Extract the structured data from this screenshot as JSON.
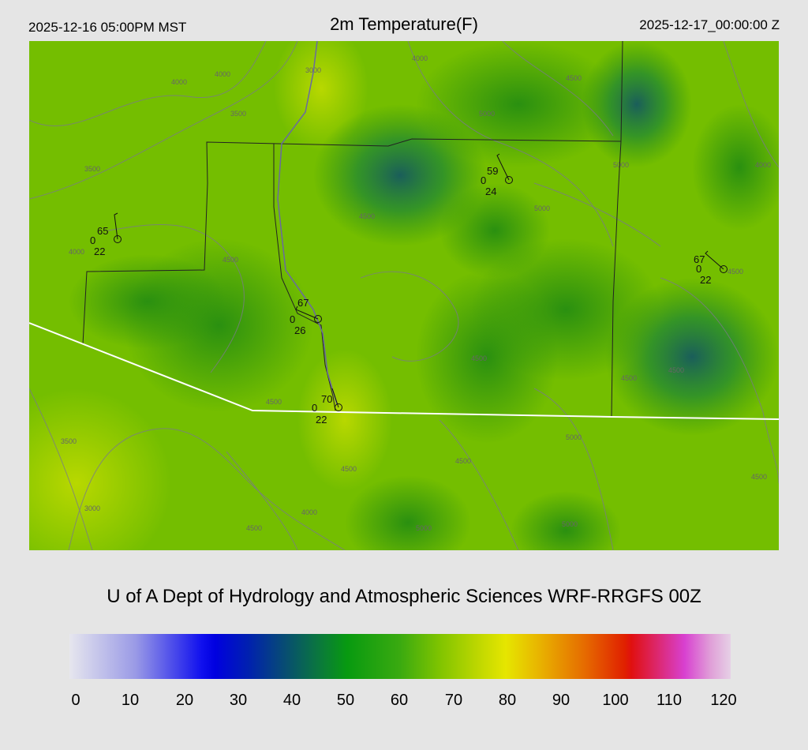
{
  "header": {
    "local_time": "2025-12-16 05:00PM MST",
    "title": "2m Temperature(F)",
    "utc_time": "2025-12-17_00:00:00 Z"
  },
  "credit": "U of A Dept of Hydrology and Atmospheric Sciences WRF-RRGFS 00Z",
  "colorbar": {
    "ticks": [
      "0",
      "10",
      "20",
      "30",
      "40",
      "50",
      "60",
      "70",
      "80",
      "90",
      "100",
      "110",
      "120"
    ],
    "colors": {
      "low": "#e6e6ee",
      "blue": "#0000e0",
      "green": "#089a10",
      "yellow": "#e6e600",
      "red": "#e01010",
      "high": "#e6d0e6"
    }
  },
  "map": {
    "field_colors": {
      "base": "#7cc400",
      "dark_green": "#3a9e10",
      "deep": "#1e6e50",
      "yellow": "#b8d800"
    },
    "contour_labels": [
      "4000",
      "4000",
      "3000",
      "3500",
      "3500",
      "4500",
      "4000",
      "4500",
      "5000",
      "5000",
      "5000",
      "4000",
      "4500",
      "4500",
      "4500",
      "4500",
      "3500",
      "3000",
      "4000",
      "4500",
      "4500",
      "4500",
      "5000",
      "5000",
      "5000",
      "4500",
      "4000",
      "4500",
      "4500"
    ],
    "stations": [
      {
        "temp": "65",
        "wind": "0",
        "dew": "22"
      },
      {
        "temp": "59",
        "wind": "0",
        "dew": "24"
      },
      {
        "temp": "67",
        "wind": "0",
        "dew": "22"
      },
      {
        "temp": "67",
        "wind": "0",
        "dew": "26"
      },
      {
        "temp": "70",
        "wind": "0",
        "dew": "22"
      }
    ]
  }
}
